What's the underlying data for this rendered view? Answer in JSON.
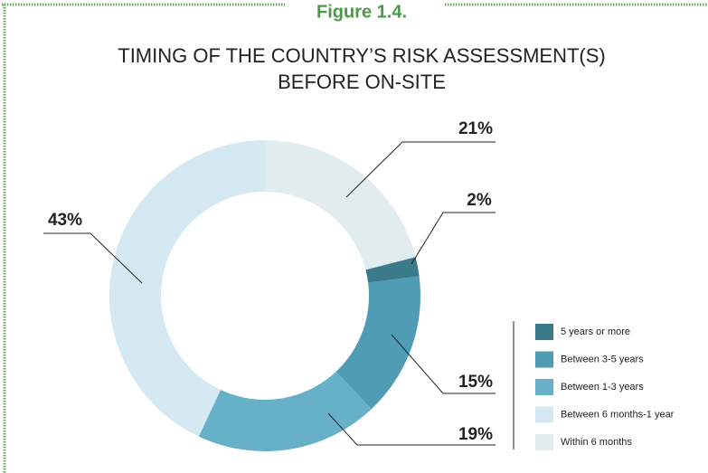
{
  "chart_data": {
    "type": "donut",
    "figure_label": "Figure 1.4.",
    "title": [
      "TIMING OF THE COUNTRY’S RISK ASSESSMENT(S)",
      "BEFORE ON-SITE"
    ],
    "categories": [
      "5 years or more",
      "Between 3-5 years",
      "Between 1-3 years",
      "Between 6 months-1 year",
      "Within 6 months"
    ],
    "values": [
      2,
      15,
      19,
      43,
      21
    ],
    "value_labels": [
      "2%",
      "15%",
      "19%",
      "43%",
      "21%"
    ],
    "colors": [
      "#3b7a8b",
      "#4f9cb4",
      "#66b1c7",
      "#d5e9f2",
      "#e0ecee"
    ],
    "legend": "right"
  }
}
